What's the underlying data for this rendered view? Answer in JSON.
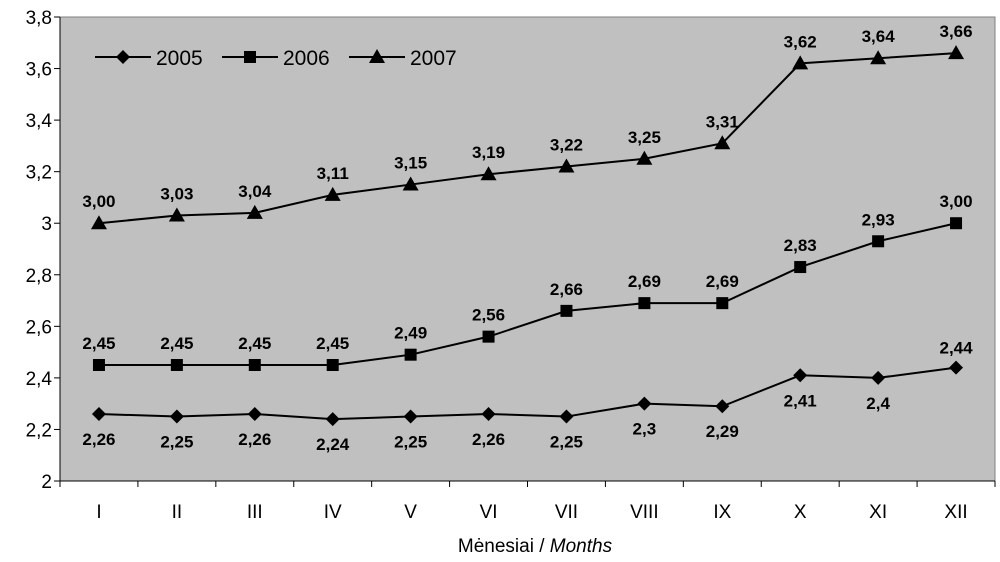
{
  "chart_data": {
    "type": "line",
    "categories": [
      "I",
      "II",
      "III",
      "IV",
      "V",
      "VI",
      "VII",
      "VIII",
      "IX",
      "X",
      "XI",
      "XII"
    ],
    "series": [
      {
        "name": "2005",
        "marker": "diamond",
        "values": [
          2.26,
          2.25,
          2.26,
          2.24,
          2.25,
          2.26,
          2.25,
          2.3,
          2.29,
          2.41,
          2.4,
          2.44
        ],
        "labels": [
          "2,26",
          "2,25",
          "2,26",
          "2,24",
          "2,25",
          "2,26",
          "2,25",
          "2,3",
          "2,29",
          "2,41",
          "2,4",
          "2,44"
        ]
      },
      {
        "name": "2006",
        "marker": "square",
        "values": [
          2.45,
          2.45,
          2.45,
          2.45,
          2.49,
          2.56,
          2.66,
          2.69,
          2.69,
          2.83,
          2.93,
          3.0
        ],
        "labels": [
          "2,45",
          "2,45",
          "2,45",
          "2,45",
          "2,49",
          "2,56",
          "2,66",
          "2,69",
          "2,69",
          "2,83",
          "2,93",
          "3,00"
        ]
      },
      {
        "name": "2007",
        "marker": "triangle",
        "values": [
          3.0,
          3.03,
          3.04,
          3.11,
          3.15,
          3.19,
          3.22,
          3.25,
          3.31,
          3.62,
          3.64,
          3.66
        ],
        "labels": [
          "3,00",
          "3,03",
          "3,04",
          "3,11",
          "3,15",
          "3,19",
          "3,22",
          "3,25",
          "3,31",
          "3,62",
          "3,64",
          "3,66"
        ]
      }
    ],
    "ylim": [
      2,
      3.8
    ],
    "yticks": [
      {
        "value": 2,
        "label": "2"
      },
      {
        "value": 2.2,
        "label": "2,2"
      },
      {
        "value": 2.4,
        "label": "2,4"
      },
      {
        "value": 2.6,
        "label": "2,6"
      },
      {
        "value": 2.8,
        "label": "2,8"
      },
      {
        "value": 3,
        "label": "3"
      },
      {
        "value": 3.2,
        "label": "3,2"
      },
      {
        "value": 3.4,
        "label": "3,4"
      },
      {
        "value": 3.6,
        "label": "3,6"
      },
      {
        "value": 3.8,
        "label": "3,8"
      }
    ],
    "xlabel_main": "Mėnesiai / ",
    "xlabel_italic": "Months",
    "legend": "top-left",
    "grid": false,
    "colors": {
      "plot_background": "#c0c0c0",
      "line": "#000000",
      "marker": "#000000"
    }
  }
}
